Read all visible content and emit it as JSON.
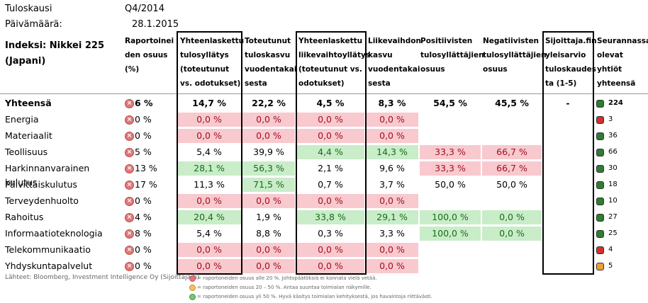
{
  "meta": {
    "period_label": "Tuloskausi",
    "period_value": "Q4/2014",
    "date_label": "Päivämäärä:",
    "date_value": "28.1.2015"
  },
  "index_label": "Indeksi: Nikkei 225 (Japani)",
  "headers": {
    "share": "Raportoinei den osuus (%)",
    "eps_surprise": "Yhteenlaskettu tulosyllätys (toteutunut vs. odotukset)",
    "eps_growth": "Toteutunut tuloskasvu vuodentakai sesta",
    "rev_surprise": "Yhteenlaskettu liikevaihtoyllätys (toteutunut vs. odotukset)",
    "rev_growth": "Liikevaihdon kasvu vuodentakai sesta",
    "positive": "Positiivisten tulosyllättäjien osuus",
    "negative": "Negatiivisten tulosyllättäjien osuus",
    "sijoittaja": "Sijoittaja.fin yleisarvio tuloskaudes ta (1-5)",
    "tracked": "Seurannassa olevat yhtiöt yhteensä"
  },
  "colors": {
    "red": "#f8c9ce",
    "green": "#c9ecc9",
    "status_red": "#d32f2f",
    "status_green": "#2e7d32",
    "status_orange": "#f0a030"
  },
  "rows": [
    {
      "sector": "Yhteensä",
      "share": "6 %",
      "eps_surprise": "14,7 %",
      "eps_growth": "22,2 %",
      "rev_surprise": "4,5 %",
      "rev_growth": "8,3 %",
      "positive": "54,5 %",
      "negative": "45,5 %",
      "sijoittaja": "-",
      "tracked": "224"
    },
    {
      "sector": "Energia",
      "share": "0 %",
      "eps_surprise": "0,0 %",
      "eps_growth": "0,0 %",
      "rev_surprise": "0,0 %",
      "rev_growth": "0,0 %",
      "positive": "",
      "negative": "",
      "sijoittaja": "",
      "tracked": "3"
    },
    {
      "sector": "Materiaalit",
      "share": "0 %",
      "eps_surprise": "0,0 %",
      "eps_growth": "0,0 %",
      "rev_surprise": "0,0 %",
      "rev_growth": "0,0 %",
      "positive": "",
      "negative": "",
      "sijoittaja": "",
      "tracked": "36"
    },
    {
      "sector": "Teollisuus",
      "share": "5 %",
      "eps_surprise": "5,4 %",
      "eps_growth": "39,9 %",
      "rev_surprise": "4,4 %",
      "rev_growth": "14,3 %",
      "positive": "33,3 %",
      "negative": "66,7 %",
      "sijoittaja": "",
      "tracked": "66"
    },
    {
      "sector": "Harkinnanvarainen kulutus",
      "share": "13 %",
      "eps_surprise": "28,1 %",
      "eps_growth": "56,3 %",
      "rev_surprise": "2,1 %",
      "rev_growth": "9,6 %",
      "positive": "33,3 %",
      "negative": "66,7 %",
      "sijoittaja": "",
      "tracked": "30"
    },
    {
      "sector": "Päivittäiskulutus",
      "share": "17 %",
      "eps_surprise": "11,3 %",
      "eps_growth": "71,5 %",
      "rev_surprise": "0,7 %",
      "rev_growth": "3,7 %",
      "positive": "50,0 %",
      "negative": "50,0 %",
      "sijoittaja": "",
      "tracked": "18"
    },
    {
      "sector": "Terveydenhuolto",
      "share": "0 %",
      "eps_surprise": "0,0 %",
      "eps_growth": "0,0 %",
      "rev_surprise": "0,0 %",
      "rev_growth": "0,0 %",
      "positive": "",
      "negative": "",
      "sijoittaja": "",
      "tracked": "10"
    },
    {
      "sector": "Rahoitus",
      "share": "4 %",
      "eps_surprise": "20,4 %",
      "eps_growth": "1,9 %",
      "rev_surprise": "33,8 %",
      "rev_growth": "29,1 %",
      "positive": "100,0 %",
      "negative": "0,0 %",
      "sijoittaja": "",
      "tracked": "27"
    },
    {
      "sector": "Informaatioteknologia",
      "share": "8 %",
      "eps_surprise": "5,4 %",
      "eps_growth": "8,8 %",
      "rev_surprise": "0,3 %",
      "rev_growth": "3,3 %",
      "positive": "100,0 %",
      "negative": "0,0 %",
      "sijoittaja": "",
      "tracked": "25"
    },
    {
      "sector": "Telekommunikaatio",
      "share": "0 %",
      "eps_surprise": "0,0 %",
      "eps_growth": "0,0 %",
      "rev_surprise": "0,0 %",
      "rev_growth": "0,0 %",
      "positive": "",
      "negative": "",
      "sijoittaja": "",
      "tracked": "4"
    },
    {
      "sector": "Yhdyskuntapalvelut",
      "share": "0 %",
      "eps_surprise": "0,0 %",
      "eps_growth": "0,0 %",
      "rev_surprise": "0,0 %",
      "rev_growth": "0,0 %",
      "positive": "",
      "negative": "",
      "sijoittaja": "",
      "tracked": "5"
    }
  ],
  "footer": {
    "source": "Lähteet: Bloomberg, Investment Intelligence Oy (Sijoittaja.fi)",
    "legend_red": "= raportoneiden osuus alle 20 %. Johtopäätöksiä ei kannata vielä vetää.",
    "legend_orange": "= raportoneiden osuus 20 – 50 %. Antaa suuntaa toimialan näkymille.",
    "legend_green": "= raportoneiden osuus yli 50 %. Hyvä käsitys toimialan kehityksestä, jos havaintoja riittävästi."
  }
}
